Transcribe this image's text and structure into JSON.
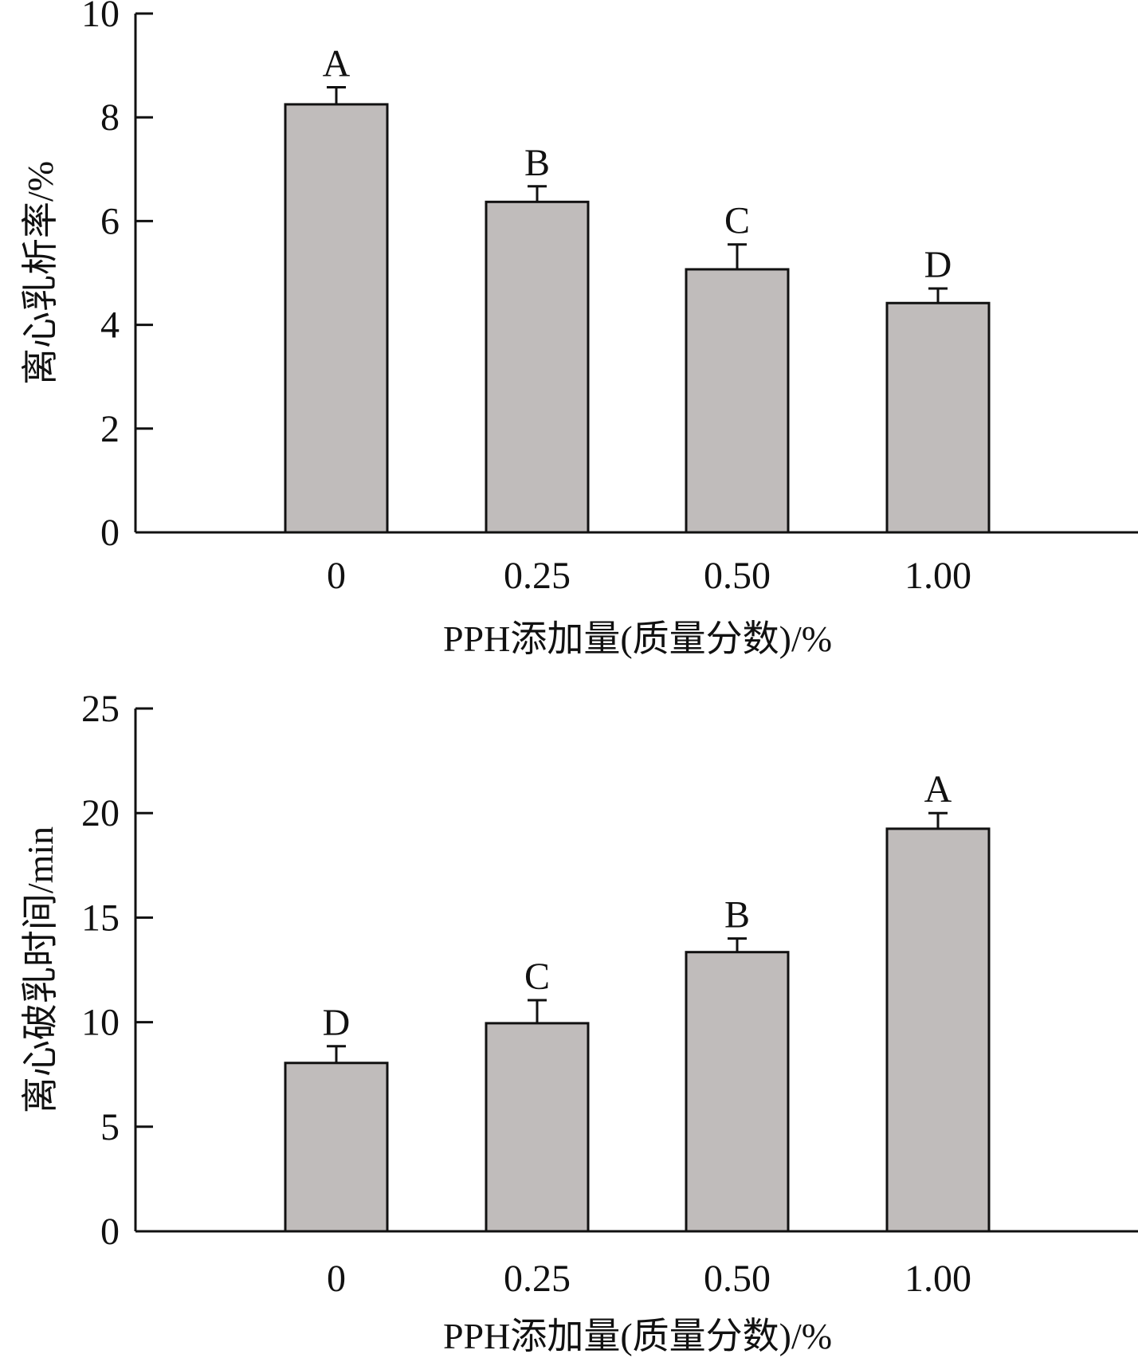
{
  "colors": {
    "bar_fill": "#c0bcbb",
    "bar_stroke": "#111111",
    "axis": "#111111"
  },
  "chart_data": [
    {
      "type": "bar",
      "categories": [
        "0",
        "0.25",
        "0.50",
        "1.00"
      ],
      "values": [
        8.25,
        6.37,
        5.07,
        4.42
      ],
      "errors": [
        0.33,
        0.3,
        0.48,
        0.28
      ],
      "significance": [
        "A",
        "B",
        "C",
        "D"
      ],
      "xlabel": "PPH添加量(质量分数)/%",
      "ylabel": "离心乳析率/%",
      "ylim": [
        0,
        10
      ],
      "yticks": [
        "0",
        "2",
        "4",
        "6",
        "8",
        "10"
      ],
      "grid": false,
      "legend": "none"
    },
    {
      "type": "bar",
      "categories": [
        "0",
        "0.25",
        "0.50",
        "1.00"
      ],
      "values": [
        8.05,
        9.95,
        13.35,
        19.25
      ],
      "errors": [
        0.8,
        1.1,
        0.65,
        0.75
      ],
      "significance": [
        "D",
        "C",
        "B",
        "A"
      ],
      "xlabel": "PPH添加量(质量分数)/%",
      "ylabel": "离心破乳时间/min",
      "ylim": [
        0,
        25
      ],
      "yticks": [
        "0",
        "5",
        "10",
        "15",
        "20",
        "25"
      ],
      "grid": false,
      "legend": "none"
    }
  ]
}
